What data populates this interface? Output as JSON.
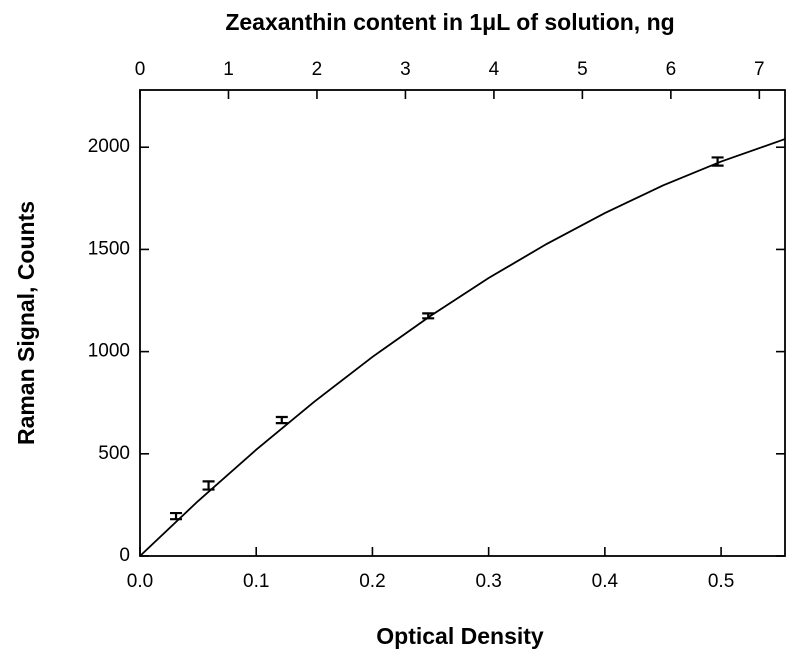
{
  "chart_data": {
    "type": "scatter",
    "title": "Zeaxanthin content in 1μL of solution, ng",
    "x_label": "Optical Density",
    "y_label": "Raman Signal, Counts",
    "xlim": [
      0,
      0.555
    ],
    "xticks": [
      {
        "value": 0,
        "label": "0.0"
      },
      0.1,
      0.2,
      0.3,
      0.4,
      0.5
    ],
    "x2lim": [
      0,
      7.29
    ],
    "x2ticks": [
      0,
      1,
      2,
      3,
      4,
      5,
      6,
      7
    ],
    "ylim": [
      0,
      2280
    ],
    "yticks": [
      0,
      500,
      1000,
      1500,
      2000
    ],
    "color": "#000000",
    "points": {
      "x": [
        0.031,
        0.059,
        0.122,
        0.248,
        0.497
      ],
      "y": [
        195,
        345,
        665,
        1175,
        1930
      ],
      "errors": [
        15,
        20,
        15,
        12,
        20
      ]
    },
    "fit": {
      "x": [
        0,
        0.05,
        0.1,
        0.15,
        0.2,
        0.25,
        0.3,
        0.35,
        0.4,
        0.45,
        0.5,
        0.555
      ],
      "y": [
        0,
        269,
        520,
        755,
        974,
        1175,
        1360,
        1527,
        1678,
        1813,
        1930,
        2040
      ]
    }
  }
}
